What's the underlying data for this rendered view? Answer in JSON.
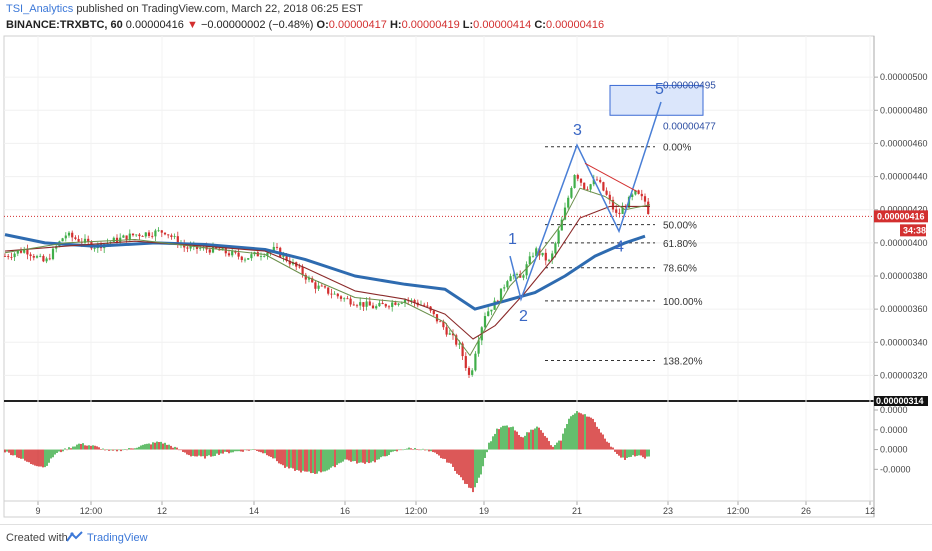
{
  "header": {
    "author": "TSI_Analytics",
    "published_text": "published on TradingView.com, March 22, 2018 06:25 EST",
    "symbol": "BINANCE:TRXBTC, 60",
    "last": "0.00000416",
    "change_arrow": "▼",
    "change": "−0.00000002 (−0.48%)",
    "o_label": "O:",
    "o_value": "0.00000417",
    "h_label": "H:",
    "h_value": "0.00000419",
    "l_label": "L:",
    "l_value": "0.00000414",
    "c_label": "C:",
    "c_value": "0.00000416"
  },
  "footer": {
    "created_with": "Created with",
    "brand": "TradingView"
  },
  "colors": {
    "up": "#3fae49",
    "down": "#d32f2f",
    "ma_slow": "#2e6bb0",
    "ma_mid": "#8b2a2a",
    "ma_fast": "#6a8f4a",
    "wave": "#4a7fd6",
    "price_line": "#d32f2f",
    "target_box": "#dbe6fb"
  },
  "chart_data": [
    {
      "type": "candlestick",
      "title": "BINANCE:TRXBTC, 60",
      "x_tick_labels": [
        "9",
        "12:00",
        "12",
        "14",
        "16",
        "12:00",
        "19",
        "21",
        "23",
        "12:00",
        "26",
        "12"
      ],
      "y_tick_labels": [
        "0.00000500",
        "0.00000480",
        "0.00000460",
        "0.00000440",
        "0.00000420",
        "0.00000400",
        "0.00000380",
        "0.00000360",
        "0.00000340",
        "0.00000320"
      ],
      "ylim": [
        3.1e-06,
        5.2e-06
      ],
      "price_label": "0.00000416",
      "countdown": "34:38",
      "low_label": "0.00000314",
      "close_points": [
        [
          0,
          3.92e-06
        ],
        [
          20,
          3.96e-06
        ],
        [
          40,
          3.88e-06
        ],
        [
          60,
          4.05e-06
        ],
        [
          90,
          3.98e-06
        ],
        [
          130,
          4.05e-06
        ],
        [
          160,
          4.07e-06
        ],
        [
          180,
          3.97e-06
        ],
        [
          210,
          3.96e-06
        ],
        [
          240,
          3.91e-06
        ],
        [
          270,
          3.96e-06
        ],
        [
          290,
          3.86e-06
        ],
        [
          310,
          3.74e-06
        ],
        [
          340,
          3.66e-06
        ],
        [
          370,
          3.61e-06
        ],
        [
          400,
          3.66e-06
        ],
        [
          420,
          3.62e-06
        ],
        [
          440,
          3.48e-06
        ],
        [
          455,
          3.37e-06
        ],
        [
          465,
          3.18e-06
        ],
        [
          472,
          3.4e-06
        ],
        [
          480,
          3.57e-06
        ],
        [
          492,
          3.65e-06
        ],
        [
          505,
          3.82e-06
        ],
        [
          515,
          3.78e-06
        ],
        [
          530,
          3.96e-06
        ],
        [
          545,
          3.88e-06
        ],
        [
          560,
          4.2e-06
        ],
        [
          570,
          4.43e-06
        ],
        [
          580,
          4.33e-06
        ],
        [
          592,
          4.38e-06
        ],
        [
          602,
          4.28e-06
        ],
        [
          612,
          4.16e-06
        ],
        [
          622,
          4.24e-06
        ],
        [
          630,
          4.3e-06
        ],
        [
          640,
          4.25e-06
        ],
        [
          645,
          4.16e-06
        ]
      ],
      "ma_fast_points": [
        [
          0,
          3.94e-06
        ],
        [
          60,
          4e-06
        ],
        [
          130,
          4.02e-06
        ],
        [
          200,
          3.97e-06
        ],
        [
          260,
          3.93e-06
        ],
        [
          300,
          3.8e-06
        ],
        [
          350,
          3.67e-06
        ],
        [
          400,
          3.64e-06
        ],
        [
          440,
          3.52e-06
        ],
        [
          465,
          3.32e-06
        ],
        [
          480,
          3.48e-06
        ],
        [
          505,
          3.74e-06
        ],
        [
          530,
          3.9e-06
        ],
        [
          555,
          4.1e-06
        ],
        [
          575,
          4.33e-06
        ],
        [
          600,
          4.28e-06
        ],
        [
          620,
          4.2e-06
        ],
        [
          645,
          4.23e-06
        ]
      ],
      "ma_mid_points": [
        [
          0,
          3.95e-06
        ],
        [
          60,
          3.98e-06
        ],
        [
          130,
          4.01e-06
        ],
        [
          200,
          3.98e-06
        ],
        [
          260,
          3.95e-06
        ],
        [
          300,
          3.85e-06
        ],
        [
          350,
          3.71e-06
        ],
        [
          400,
          3.66e-06
        ],
        [
          440,
          3.57e-06
        ],
        [
          468,
          3.42e-06
        ],
        [
          490,
          3.5e-06
        ],
        [
          520,
          3.7e-06
        ],
        [
          550,
          3.92e-06
        ],
        [
          575,
          4.15e-06
        ],
        [
          605,
          4.22e-06
        ],
        [
          645,
          4.22e-06
        ]
      ],
      "ma_slow_points": [
        [
          0,
          4.05e-06
        ],
        [
          40,
          4e-06
        ],
        [
          90,
          3.98e-06
        ],
        [
          150,
          4e-06
        ],
        [
          200,
          3.99e-06
        ],
        [
          260,
          3.96e-06
        ],
        [
          300,
          3.9e-06
        ],
        [
          350,
          3.8e-06
        ],
        [
          400,
          3.75e-06
        ],
        [
          440,
          3.72e-06
        ],
        [
          470,
          3.6e-06
        ],
        [
          500,
          3.65e-06
        ],
        [
          530,
          3.7e-06
        ],
        [
          560,
          3.8e-06
        ],
        [
          590,
          3.92e-06
        ],
        [
          620,
          4e-06
        ],
        [
          640,
          4.04e-06
        ]
      ],
      "fib_levels": [
        {
          "label": "0.00%",
          "price": 4.58e-06
        },
        {
          "label": "50.00%",
          "price": 4.11e-06
        },
        {
          "label": "61.80%",
          "price": 4e-06
        },
        {
          "label": "78.60%",
          "price": 3.85e-06
        },
        {
          "label": "100.00%",
          "price": 3.65e-06
        },
        {
          "label": "138.20%",
          "price": 3.29e-06
        }
      ],
      "wave_points": [
        {
          "label": "1",
          "x": 505,
          "price": 3.92e-06
        },
        {
          "label": "2",
          "x": 516,
          "price": 3.66e-06
        },
        {
          "label": "3",
          "x": 572,
          "price": 4.59e-06
        },
        {
          "label": "4",
          "x": 614,
          "price": 4.07e-06
        },
        {
          "label": "5",
          "x": 656,
          "price": 4.85e-06
        }
      ],
      "trendline": [
        [
          580,
          4.48e-06
        ],
        [
          632,
          4.31e-06
        ]
      ],
      "target_box": {
        "x1": 605,
        "x2": 698,
        "price_top": 4.95e-06,
        "price_bottom": 4.77e-06,
        "upper_label": "0.00000495",
        "lower_label": "0.00000477"
      }
    },
    {
      "type": "bar",
      "title": "",
      "y_tick_labels": [
        "0.0000",
        "0.0000",
        "0.0000",
        "-0.0000"
      ],
      "ylim": [
        -1.2,
        1.0
      ],
      "histogram": [
        [
          0,
          -0.05
        ],
        [
          10,
          -0.15
        ],
        [
          25,
          -0.35
        ],
        [
          40,
          -0.45
        ],
        [
          50,
          -0.12
        ],
        [
          60,
          0.0
        ],
        [
          75,
          0.15
        ],
        [
          90,
          0.08
        ],
        [
          105,
          -0.05
        ],
        [
          125,
          0.02
        ],
        [
          140,
          0.12
        ],
        [
          155,
          0.2
        ],
        [
          170,
          0.05
        ],
        [
          185,
          -0.15
        ],
        [
          200,
          -0.2
        ],
        [
          215,
          -0.1
        ],
        [
          230,
          -0.05
        ],
        [
          250,
          0.0
        ],
        [
          265,
          -0.15
        ],
        [
          280,
          -0.45
        ],
        [
          295,
          -0.55
        ],
        [
          310,
          -0.6
        ],
        [
          325,
          -0.5
        ],
        [
          340,
          -0.25
        ],
        [
          355,
          -0.35
        ],
        [
          370,
          -0.3
        ],
        [
          385,
          -0.1
        ],
        [
          400,
          0.03
        ],
        [
          415,
          0.02
        ],
        [
          430,
          -0.1
        ],
        [
          445,
          -0.35
        ],
        [
          460,
          -0.85
        ],
        [
          468,
          -1.05
        ],
        [
          476,
          -0.6
        ],
        [
          484,
          0.15
        ],
        [
          492,
          0.5
        ],
        [
          500,
          0.6
        ],
        [
          508,
          0.55
        ],
        [
          516,
          0.3
        ],
        [
          524,
          0.45
        ],
        [
          532,
          0.6
        ],
        [
          540,
          0.35
        ],
        [
          548,
          0.05
        ],
        [
          556,
          0.25
        ],
        [
          564,
          0.8
        ],
        [
          572,
          0.95
        ],
        [
          580,
          0.9
        ],
        [
          588,
          0.75
        ],
        [
          596,
          0.45
        ],
        [
          604,
          0.15
        ],
        [
          612,
          -0.1
        ],
        [
          620,
          -0.25
        ],
        [
          630,
          -0.15
        ],
        [
          640,
          -0.2
        ],
        [
          645,
          -0.2
        ]
      ]
    }
  ]
}
